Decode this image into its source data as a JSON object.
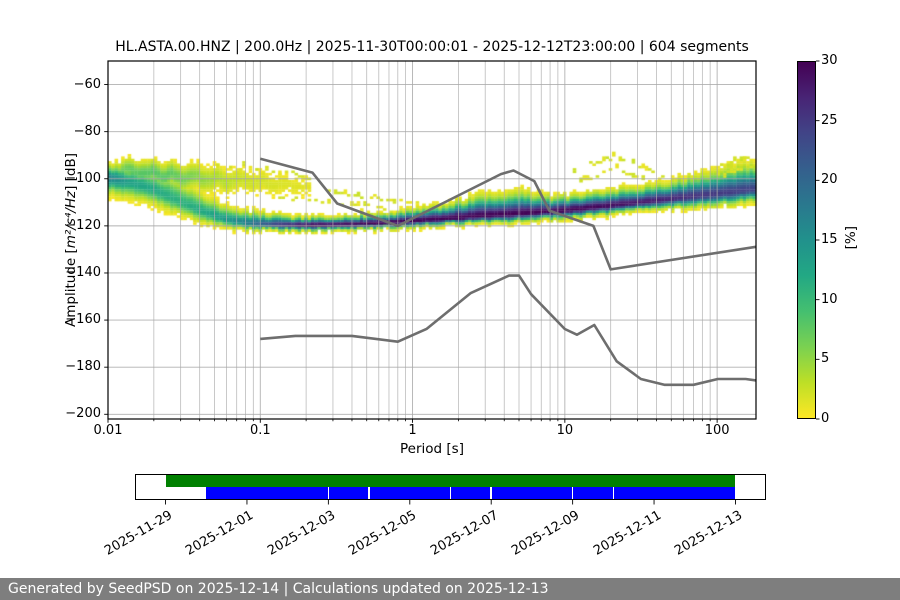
{
  "figure": {
    "footer": "Generated by SeedPSD on 2025-12-14 | Calculations updated on 2025-12-13",
    "footer_bg": "#7e7e7e"
  },
  "chart_data": {
    "type": "heatmap",
    "subtype": "ppsd-probability-histogram",
    "title": "HL.ASTA.00.HNZ | 200.0Hz | 2025-11-30T00:00:01 - 2025-12-12T23:00:00 | 604 segments",
    "xlabel": "Period [s]",
    "ylabel_prefix": "Amplitude [",
    "ylabel_math": "m²/s⁴/Hz",
    "ylabel_suffix": "] [dB]",
    "xscale": "log",
    "xlim": [
      0.01,
      180
    ],
    "ylim": [
      -202,
      -50
    ],
    "grid": true,
    "xticks": [
      {
        "v": 0.01,
        "label": "0.01"
      },
      {
        "v": 0.1,
        "label": "0.1"
      },
      {
        "v": 1,
        "label": "1"
      },
      {
        "v": 10,
        "label": "10"
      },
      {
        "v": 100,
        "label": "100"
      }
    ],
    "yticks": [
      {
        "v": -60,
        "label": "−60"
      },
      {
        "v": -80,
        "label": "−80"
      },
      {
        "v": -100,
        "label": "−100"
      },
      {
        "v": -120,
        "label": "−120"
      },
      {
        "v": -140,
        "label": "−140"
      },
      {
        "v": -160,
        "label": "−160"
      },
      {
        "v": -180,
        "label": "−180"
      },
      {
        "v": -200,
        "label": "−200"
      }
    ],
    "colorbar": {
      "label": "[%]",
      "min": 0,
      "max": 30,
      "ticks": [
        0,
        5,
        10,
        15,
        20,
        25,
        30
      ],
      "colormap": "viridis_r",
      "viridis_stops": [
        "#440154",
        "#482475",
        "#414487",
        "#355f8d",
        "#2a788e",
        "#21918c",
        "#22a884",
        "#44bf70",
        "#7ad151",
        "#bddf26",
        "#fde725"
      ]
    },
    "ppsd_main_band": [
      {
        "p": 0.01,
        "mode": -99.5,
        "lo": -108,
        "hi": -92.5,
        "peak": 17
      },
      {
        "p": 0.014,
        "mode": -101.5,
        "lo": -110,
        "hi": -92.5,
        "peak": 13
      },
      {
        "p": 0.02,
        "mode": -104.5,
        "lo": -113,
        "hi": -93.5,
        "peak": 12
      },
      {
        "p": 0.03,
        "mode": -110,
        "lo": -117,
        "hi": -99,
        "peak": 11
      },
      {
        "p": 0.042,
        "mode": -114,
        "lo": -120,
        "hi": -105,
        "peak": 12
      },
      {
        "p": 0.06,
        "mode": -117.5,
        "lo": -121.5,
        "hi": -110.5,
        "peak": 14
      },
      {
        "p": 0.085,
        "mode": -119,
        "lo": -122.5,
        "hi": -112.5,
        "peak": 18
      },
      {
        "p": 0.12,
        "mode": -119.6,
        "lo": -122.5,
        "hi": -114.5,
        "peak": 24
      },
      {
        "p": 0.2,
        "mode": -119.8,
        "lo": -122.5,
        "hi": -115.5,
        "peak": 30
      },
      {
        "p": 0.45,
        "mode": -119.4,
        "lo": -122,
        "hi": -114.5,
        "peak": 30
      },
      {
        "p": 0.8,
        "mode": -118.4,
        "lo": -121.5,
        "hi": -113.5,
        "peak": 30
      },
      {
        "p": 1.5,
        "mode": -117.2,
        "lo": -120.5,
        "hi": -111,
        "peak": 30
      },
      {
        "p": 3.0,
        "mode": -115.8,
        "lo": -119.5,
        "hi": -105.5,
        "peak": 30
      },
      {
        "p": 5.0,
        "mode": -115.0,
        "lo": -119,
        "hi": -104,
        "peak": 30
      },
      {
        "p": 8.0,
        "mode": -114.0,
        "lo": -118,
        "hi": -107,
        "peak": 30
      },
      {
        "p": 13,
        "mode": -112.8,
        "lo": -117,
        "hi": -106,
        "peak": 30
      },
      {
        "p": 22,
        "mode": -111.2,
        "lo": -115.5,
        "hi": -103.5,
        "peak": 29
      },
      {
        "p": 38,
        "mode": -109.6,
        "lo": -114,
        "hi": -101.5,
        "peak": 28
      },
      {
        "p": 65,
        "mode": -107.8,
        "lo": -113,
        "hi": -98,
        "peak": 26
      },
      {
        "p": 110,
        "mode": -106.3,
        "lo": -112,
        "hi": -94,
        "peak": 25
      },
      {
        "p": 180,
        "mode": -104.5,
        "lo": -111,
        "hi": -91.5,
        "peak": 24
      }
    ],
    "ppsd_upper_branch": [
      {
        "p": 0.011,
        "mode": -96.5,
        "sig": 2.4,
        "peak": 6
      },
      {
        "p": 0.016,
        "mode": -97.5,
        "sig": 2.8,
        "peak": 8
      },
      {
        "p": 0.024,
        "mode": -98.5,
        "sig": 3.0,
        "peak": 8
      },
      {
        "p": 0.035,
        "mode": -99.5,
        "sig": 3.0,
        "peak": 6
      },
      {
        "p": 0.05,
        "mode": -100.3,
        "sig": 3.0,
        "peak": 4
      },
      {
        "p": 0.075,
        "mode": -101,
        "sig": 2.9,
        "peak": 2.6
      },
      {
        "p": 0.11,
        "mode": -101.8,
        "sig": 2.7,
        "peak": 2.0
      },
      {
        "p": 0.16,
        "mode": -102.8,
        "sig": 2.4,
        "peak": 1.5
      },
      {
        "p": 0.22,
        "mode": -104,
        "sig": 2.2,
        "peak": 1.2
      }
    ],
    "ppsd_outlier_streaks": [
      [
        [
          11,
          -98
        ],
        [
          14,
          -94.5
        ],
        [
          19,
          -91
        ],
        [
          24,
          -91.5
        ],
        [
          30,
          -94
        ],
        [
          38,
          -97.5
        ],
        [
          46,
          -100
        ]
      ],
      [
        [
          12,
          -102
        ],
        [
          16,
          -98
        ],
        [
          21,
          -95.5
        ],
        [
          28,
          -98.5
        ],
        [
          36,
          -102
        ]
      ],
      [
        [
          90,
          -96
        ],
        [
          120,
          -93
        ],
        [
          150,
          -91.5
        ],
        [
          178,
          -91
        ]
      ],
      [
        [
          95,
          -99.5
        ],
        [
          130,
          -96.5
        ],
        [
          170,
          -94
        ]
      ],
      [
        [
          0.13,
          -107.5
        ],
        [
          0.22,
          -109
        ],
        [
          0.4,
          -110.5
        ],
        [
          0.7,
          -112
        ]
      ],
      [
        [
          0.28,
          -105.5
        ],
        [
          0.5,
          -107.5
        ],
        [
          0.85,
          -110
        ],
        [
          1.3,
          -111.5
        ]
      ],
      [
        [
          0.05,
          -94
        ],
        [
          0.09,
          -95.5
        ],
        [
          0.15,
          -97.5
        ],
        [
          0.22,
          -100
        ]
      ]
    ],
    "noise_models": {
      "color": "#6e6e6e",
      "nhnm": [
        [
          0.1,
          -91.5
        ],
        [
          0.22,
          -97.4
        ],
        [
          0.32,
          -110.5
        ],
        [
          0.8,
          -120.0
        ],
        [
          3.8,
          -98.0
        ],
        [
          4.6,
          -96.5
        ],
        [
          6.3,
          -101.0
        ],
        [
          7.9,
          -113.5
        ],
        [
          15.4,
          -120.0
        ],
        [
          20.0,
          -138.5
        ],
        [
          180,
          -128.9
        ]
      ],
      "nlnm": [
        [
          0.1,
          -168.0
        ],
        [
          0.17,
          -166.7
        ],
        [
          0.4,
          -166.7
        ],
        [
          0.8,
          -169.2
        ],
        [
          1.24,
          -163.7
        ],
        [
          2.4,
          -148.6
        ],
        [
          4.3,
          -141.1
        ],
        [
          5.0,
          -141.1
        ],
        [
          6.0,
          -149.0
        ],
        [
          10.0,
          -163.8
        ],
        [
          12.0,
          -166.2
        ],
        [
          15.6,
          -162.1
        ],
        [
          21.9,
          -177.5
        ],
        [
          31.6,
          -185.0
        ],
        [
          45.0,
          -187.5
        ],
        [
          70.0,
          -187.5
        ],
        [
          101.0,
          -185.0
        ],
        [
          154.0,
          -185.0
        ],
        [
          180,
          -185.6
        ]
      ]
    }
  },
  "timeline": {
    "axis_range_days": [
      -0.75,
      14.75
    ],
    "tick_days": [
      0,
      2,
      4,
      6,
      8,
      10,
      12,
      14
    ],
    "tick_labels": [
      "2025-11-29",
      "2025-12-01",
      "2025-12-03",
      "2025-12-05",
      "2025-12-07",
      "2025-12-09",
      "2025-12-11",
      "2025-12-13"
    ],
    "coverage_bar": {
      "color": "#008000",
      "start_day": 0,
      "end_day": 14
    },
    "data_segments_bar": {
      "color": "#0000ff",
      "segments": [
        [
          1,
          4
        ],
        [
          4,
          5
        ],
        [
          5,
          7
        ],
        [
          7,
          8
        ],
        [
          8,
          10
        ],
        [
          10,
          11
        ],
        [
          11,
          14
        ]
      ]
    }
  }
}
